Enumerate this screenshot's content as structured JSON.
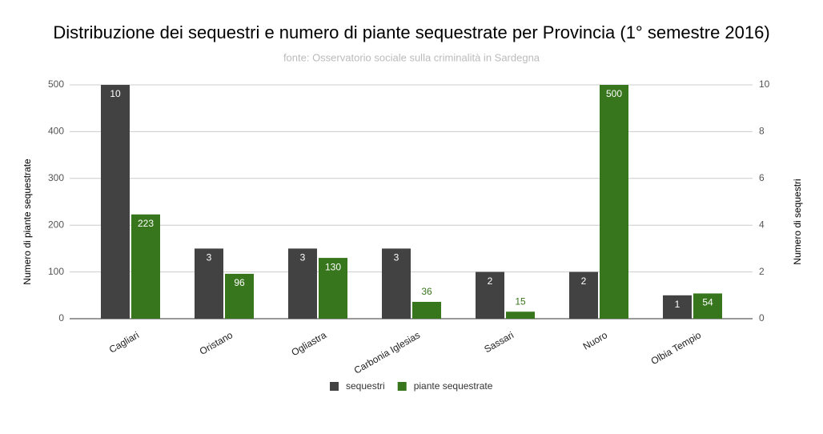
{
  "chart_data": {
    "type": "bar",
    "title": "Distribuzione dei sequestri e numero di piante sequestrate per Provincia (1° semestre 2016)",
    "subtitle": "fonte: Osservatorio sociale sulla criminalità in Sardegna",
    "y_label": "Numero di piante sequestrate",
    "y2_label": "Numero di sequestri",
    "categories": [
      "Cagliari",
      "Oristano",
      "Ogliastra",
      "Carbonia Iglesias",
      "Sassari",
      "Nuoro",
      "Olbia Tempio"
    ],
    "series": [
      {
        "name": "sequestri",
        "color": "#424242",
        "axis": "y2",
        "values": [
          10,
          3,
          3,
          3,
          2,
          2,
          1
        ]
      },
      {
        "name": "piante sequestrate",
        "color": "#38761d",
        "values": [
          223,
          96,
          130,
          36,
          15,
          500,
          54
        ]
      }
    ],
    "ylim": [
      0,
      500
    ],
    "yticks": [
      0,
      100,
      200,
      300,
      400,
      500
    ],
    "y2lim": [
      0,
      10
    ],
    "y2ticks": [
      0,
      2,
      4,
      6,
      8,
      10
    ],
    "grid": true,
    "legend": "bottom"
  }
}
